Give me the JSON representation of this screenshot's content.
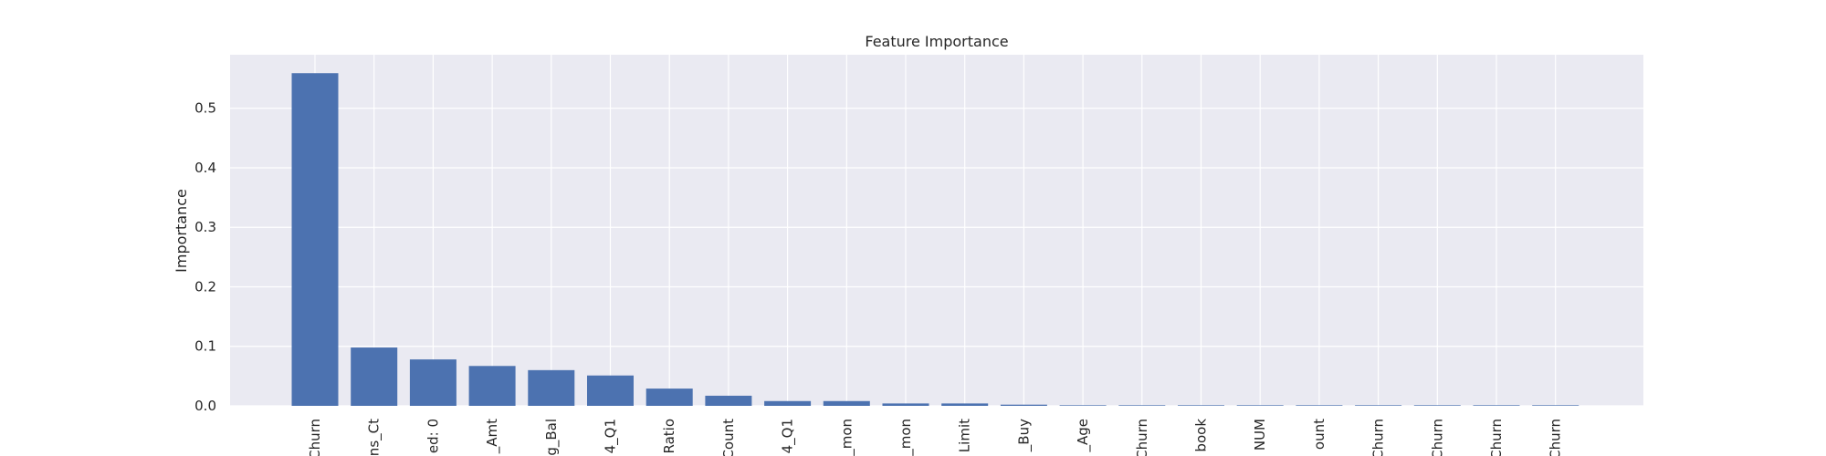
{
  "chart_data": {
    "type": "bar",
    "title": "Feature Importance",
    "xlabel": "",
    "ylabel": "Importance",
    "ylim": [
      0,
      0.59
    ],
    "yticks": [
      "0.0",
      "0.1",
      "0.2",
      "0.3",
      "0.4",
      "0.5"
    ],
    "grid": true,
    "categories": [
      "Churn",
      "ns_Ct",
      "ed: 0",
      "_Amt",
      "g_Bal",
      "4_Q1",
      "Ratio",
      "Count",
      "4_Q1",
      "_mon",
      "_mon",
      "Limit",
      "_Buy",
      "_Age",
      "Churn",
      "book",
      "NUM",
      "ount",
      "Churn",
      "Churn",
      "Churn",
      "Churn"
    ],
    "values": [
      0.559,
      0.098,
      0.078,
      0.067,
      0.06,
      0.051,
      0.029,
      0.017,
      0.008,
      0.008,
      0.004,
      0.004,
      0.002,
      0.001,
      0.001,
      0.001,
      0.001,
      0.001,
      0.001,
      0.001,
      0.001,
      0.001
    ],
    "colors": {
      "bar": "#4c72b0",
      "plot_bg": "#eaeaf2",
      "grid": "#ffffff",
      "text": "#262626"
    }
  }
}
